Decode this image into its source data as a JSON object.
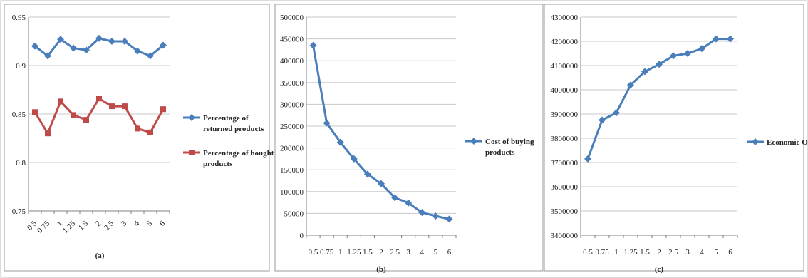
{
  "chart_data": [
    {
      "type": "line",
      "caption": "(a)",
      "categories": [
        "0.5",
        "0.75",
        "1",
        "1.25",
        "1.5",
        "2",
        "2.5",
        "3",
        "4",
        "5",
        "6"
      ],
      "ylim": [
        0.75,
        0.95
      ],
      "yticks": [
        "0.95",
        "0.9",
        "0.85",
        "0.8",
        "0.75"
      ],
      "grid": true,
      "legend_position": "right",
      "series": [
        {
          "name": "Percentage of returned products",
          "legend_lines": [
            "Percentage of",
            "returned products"
          ],
          "color": "#4a7ebb",
          "marker": "diamond",
          "values": [
            0.92,
            0.91,
            0.927,
            0.918,
            0.916,
            0.928,
            0.925,
            0.925,
            0.915,
            0.91,
            0.921
          ]
        },
        {
          "name": "Percentage of bought products",
          "legend_lines": [
            "Percentage of bought",
            "products"
          ],
          "color": "#be4b48",
          "marker": "square",
          "values": [
            0.852,
            0.83,
            0.863,
            0.849,
            0.844,
            0.866,
            0.858,
            0.858,
            0.835,
            0.831,
            0.855
          ]
        }
      ]
    },
    {
      "type": "line",
      "caption": "(b)",
      "categories": [
        "0.5",
        "0.75",
        "1",
        "1.25",
        "1.5",
        "2",
        "2.5",
        "3",
        "4",
        "5",
        "6"
      ],
      "ylim": [
        0,
        500000
      ],
      "yticks": [
        "500000",
        "450000",
        "400000",
        "350000",
        "300000",
        "250000",
        "200000",
        "150000",
        "100000",
        "50000",
        "0"
      ],
      "grid": true,
      "legend_position": "right",
      "series": [
        {
          "name": "Cost of buying products",
          "legend_lines": [
            "Cost of buying",
            "products"
          ],
          "color": "#4a7ebb",
          "marker": "diamond",
          "values": [
            435000,
            257000,
            213000,
            175000,
            140000,
            118000,
            86000,
            74000,
            52000,
            44000,
            37000
          ]
        }
      ]
    },
    {
      "type": "line",
      "caption": "(c)",
      "categories": [
        "0.5",
        "0.75",
        "1",
        "1.25",
        "1.5",
        "2",
        "2.5",
        "3",
        "4",
        "5",
        "6"
      ],
      "ylim": [
        3400000,
        4300000
      ],
      "yticks": [
        "4300000",
        "4200000",
        "4100000",
        "4000000",
        "3900000",
        "3800000",
        "3700000",
        "3600000",
        "3500000",
        "3400000"
      ],
      "grid": true,
      "legend_position": "right",
      "series": [
        {
          "name": "Economic OF",
          "legend_lines": [
            "Economic OF"
          ],
          "color": "#4a7ebb",
          "marker": "diamond",
          "values": [
            3715000,
            3875000,
            3905000,
            4020000,
            4075000,
            4105000,
            4140000,
            4150000,
            4170000,
            4210000,
            4210000
          ]
        }
      ]
    }
  ]
}
